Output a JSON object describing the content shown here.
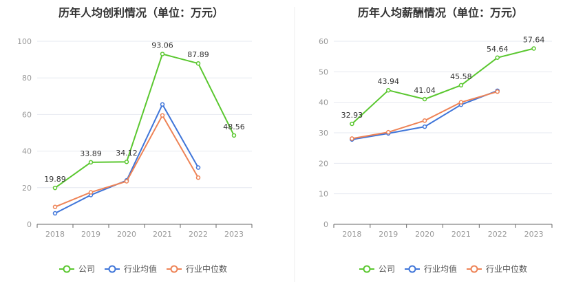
{
  "chart_data": [
    {
      "type": "line",
      "title": "历年人均创利情况（单位：万元）",
      "categories": [
        "2018",
        "2019",
        "2020",
        "2021",
        "2022",
        "2023"
      ],
      "ylim": [
        0,
        100
      ],
      "yticks": [
        0,
        20,
        40,
        60,
        80,
        100
      ],
      "grid": true,
      "legend_position": "bottom",
      "series": [
        {
          "name": "公司",
          "color": "#5ac72f",
          "values": [
            19.89,
            33.89,
            34.12,
            93.06,
            87.89,
            48.56
          ],
          "labels": [
            "19.89",
            "33.89",
            "34.12",
            "93.06",
            "87.89",
            "48.56"
          ]
        },
        {
          "name": "行业均值",
          "color": "#3f75d9",
          "values": [
            6.0,
            16.0,
            24.0,
            65.5,
            31.0,
            null
          ]
        },
        {
          "name": "行业中位数",
          "color": "#ee8356",
          "values": [
            9.5,
            17.5,
            23.5,
            59.5,
            25.5,
            null
          ]
        }
      ]
    },
    {
      "type": "line",
      "title": "历年人均薪酬情况（单位：万元）",
      "categories": [
        "2018",
        "2019",
        "2020",
        "2021",
        "2022",
        "2023"
      ],
      "ylim": [
        0,
        60
      ],
      "yticks": [
        0,
        10,
        20,
        30,
        40,
        50,
        60
      ],
      "grid": true,
      "legend_position": "bottom",
      "series": [
        {
          "name": "公司",
          "color": "#5ac72f",
          "values": [
            32.93,
            43.94,
            41.04,
            45.58,
            54.64,
            57.64
          ],
          "labels": [
            "32.93",
            "43.94",
            "41.04",
            "45.58",
            "54.64",
            "57.64"
          ]
        },
        {
          "name": "行业均值",
          "color": "#3f75d9",
          "values": [
            27.8,
            29.8,
            32.0,
            39.2,
            43.8,
            null
          ]
        },
        {
          "name": "行业中位数",
          "color": "#ee8356",
          "values": [
            28.1,
            30.2,
            34.0,
            40.0,
            43.5,
            null
          ]
        }
      ]
    }
  ]
}
